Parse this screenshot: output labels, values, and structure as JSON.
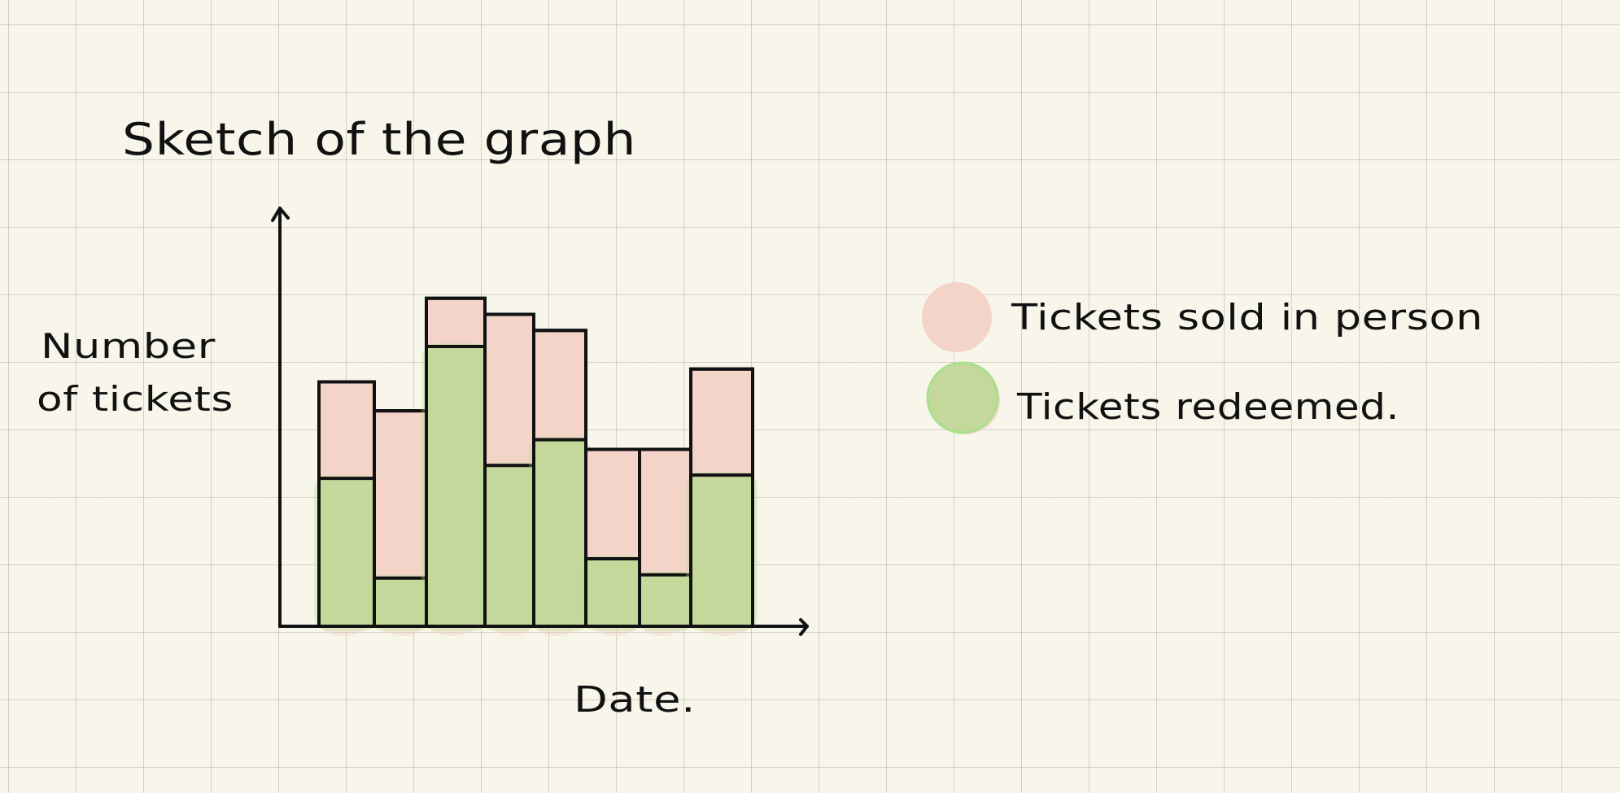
{
  "chart_data": {
    "type": "bar",
    "title": "Sketch of the graph",
    "xlabel": "Date.",
    "ylabel_lines": [
      "Number",
      "of tickets"
    ],
    "categories": [
      "",
      "",
      "",
      "",
      "",
      "",
      "",
      ""
    ],
    "series": [
      {
        "name": "Tickets sold in person",
        "values": [
          7.6,
          6.7,
          10.2,
          9.7,
          9.2,
          5.5,
          5.5,
          8.0
        ]
      },
      {
        "name": "Tickets redeemed.",
        "values": [
          4.6,
          1.5,
          8.7,
          5.0,
          5.8,
          2.1,
          1.6,
          4.7
        ]
      }
    ],
    "ylim": [
      0,
      13
    ],
    "grid": true,
    "legend_position": "right",
    "colors": {
      "sold": "#f3d1c6",
      "redeemed": "#c3d79a",
      "redeemed_blob": "#a9e08d",
      "ink": "#111111",
      "paper": "#f8f6ea",
      "grid": "#c9c7ba"
    }
  }
}
